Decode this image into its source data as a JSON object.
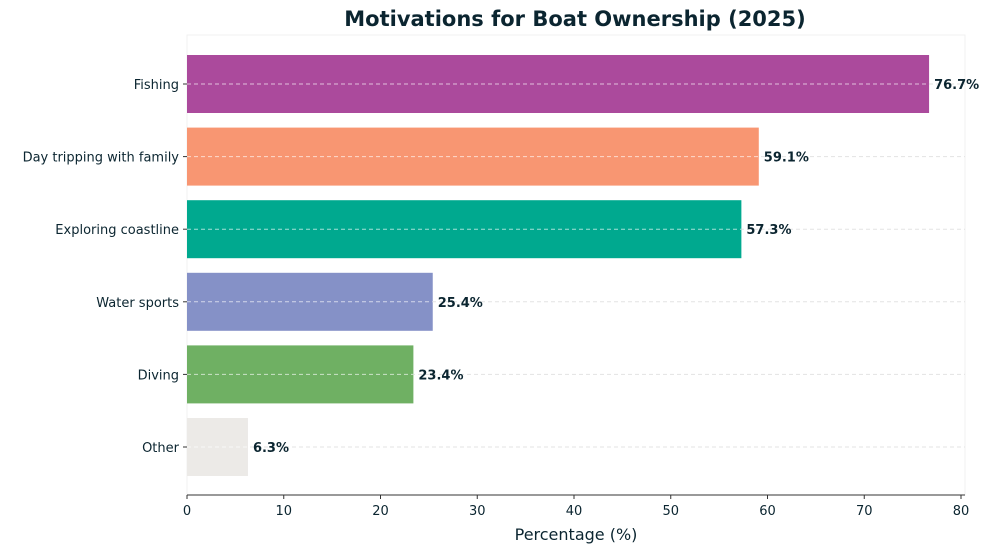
{
  "chart_data": {
    "type": "bar",
    "orientation": "horizontal",
    "title": "Motivations for Boat Ownership (2025)",
    "xlabel": "Percentage (%)",
    "ylabel": "",
    "categories": [
      "Fishing",
      "Day tripping with family",
      "Exploring coastline",
      "Water sports",
      "Diving",
      "Other"
    ],
    "values": [
      76.7,
      59.1,
      57.3,
      25.4,
      23.4,
      6.3
    ],
    "value_labels": [
      "76.7%",
      "59.1%",
      "57.3%",
      "25.4%",
      "23.4%",
      "6.3%"
    ],
    "colors": [
      "#ab4a9c",
      "#f89672",
      "#00a98f",
      "#8591c7",
      "#6fb063",
      "#eceae7"
    ],
    "xlim": [
      0,
      80
    ],
    "xticks": [
      "0",
      "10",
      "20",
      "30",
      "40",
      "50",
      "60",
      "70",
      "80"
    ],
    "xtick_values": [
      0,
      10,
      20,
      30,
      40,
      50,
      60,
      70,
      80
    ],
    "grid": "horizontal dashed",
    "legend": "none"
  }
}
